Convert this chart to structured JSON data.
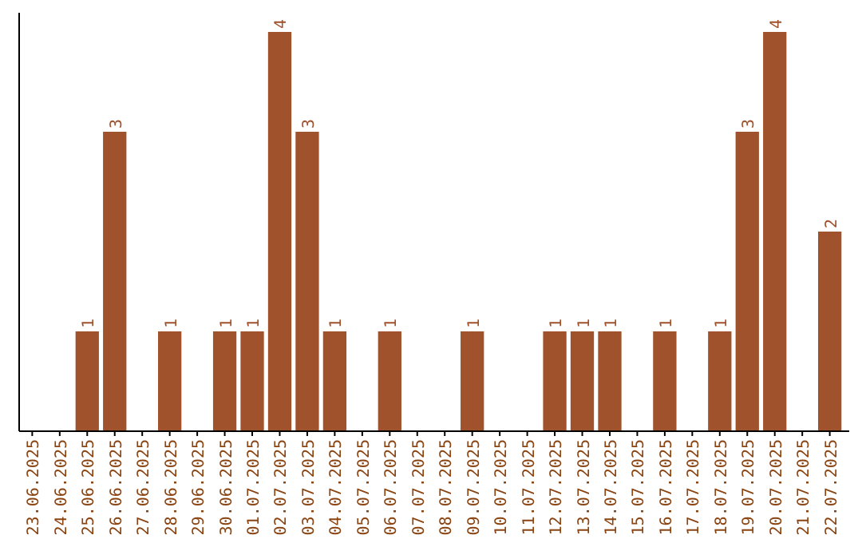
{
  "chart_data": {
    "type": "bar",
    "categories": [
      "23.06.2025",
      "24.06.2025",
      "25.06.2025",
      "26.06.2025",
      "27.06.2025",
      "28.06.2025",
      "29.06.2025",
      "30.06.2025",
      "01.07.2025",
      "02.07.2025",
      "03.07.2025",
      "04.07.2025",
      "05.07.2025",
      "06.07.2025",
      "07.07.2025",
      "08.07.2025",
      "09.07.2025",
      "10.07.2025",
      "11.07.2025",
      "12.07.2025",
      "13.07.2025",
      "14.07.2025",
      "15.07.2025",
      "16.07.2025",
      "17.07.2025",
      "18.07.2025",
      "19.07.2025",
      "20.07.2025",
      "21.07.2025",
      "22.07.2025"
    ],
    "values": [
      0,
      0,
      1,
      3,
      0,
      1,
      0,
      1,
      1,
      4,
      3,
      1,
      0,
      1,
      0,
      0,
      1,
      0,
      0,
      1,
      1,
      1,
      0,
      1,
      0,
      1,
      3,
      4,
      0,
      2
    ],
    "value_labels": [
      null,
      null,
      "1",
      "3",
      null,
      "1",
      null,
      "1",
      "1",
      "4",
      "3",
      "1",
      null,
      "1",
      null,
      null,
      "1",
      null,
      null,
      "1",
      "1",
      "1",
      null,
      "1",
      null,
      "1",
      "3",
      "4",
      null,
      "2"
    ],
    "color": "#a0522d"
  }
}
